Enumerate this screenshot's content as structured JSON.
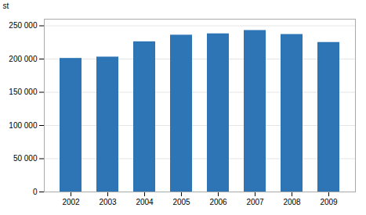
{
  "chart_data": {
    "type": "bar",
    "categories": [
      "2002",
      "2003",
      "2004",
      "2005",
      "2006",
      "2007",
      "2008",
      "2009"
    ],
    "values": [
      201000,
      203000,
      226000,
      236000,
      238000,
      243000,
      237000,
      225000
    ],
    "color": "#2E75B6",
    "ylabel": "st",
    "ylim": [
      0,
      260000
    ],
    "yticks": [
      0,
      {
        "value": 50000,
        "label": "50 000"
      },
      {
        "value": 100000,
        "label": "100 000"
      },
      {
        "value": 150000,
        "label": "150 000"
      },
      {
        "value": 200000,
        "label": "200 000"
      },
      {
        "value": 250000,
        "label": "250 000"
      }
    ],
    "grid": true
  }
}
